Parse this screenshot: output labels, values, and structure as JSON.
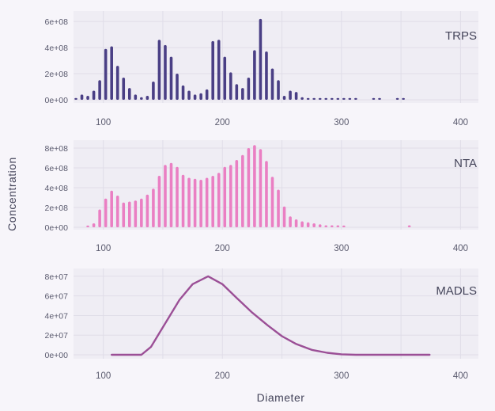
{
  "chart_data": {
    "type": "bar",
    "xlabel": "Diameter",
    "ylabel": "Concentration",
    "xlim": [
      75,
      415
    ],
    "x_ticks": [
      "100",
      "200",
      "300",
      "400"
    ],
    "grid": true,
    "panels": [
      {
        "label": "TRPS",
        "type": "bar",
        "color": "#4a3f85",
        "ylim": [
          0,
          680000000
        ],
        "y_ticks": [
          "0e+00",
          "2e+08",
          "4e+08",
          "6e+08"
        ],
        "y_tick_values": [
          0,
          200000000,
          400000000,
          600000000
        ],
        "x": [
          77,
          82,
          87,
          92,
          97,
          102,
          107,
          112,
          117,
          122,
          127,
          132,
          137,
          142,
          147,
          152,
          157,
          162,
          167,
          172,
          177,
          182,
          187,
          192,
          197,
          202,
          207,
          212,
          217,
          222,
          227,
          232,
          237,
          242,
          247,
          252,
          257,
          262,
          267,
          272,
          277,
          282,
          287,
          292,
          297,
          302,
          307,
          312,
          327,
          332,
          347,
          352
        ],
        "values": [
          10000000,
          40000000,
          30000000,
          70000000,
          150000000,
          390000000,
          410000000,
          260000000,
          170000000,
          90000000,
          40000000,
          20000000,
          30000000,
          140000000,
          460000000,
          420000000,
          330000000,
          200000000,
          110000000,
          70000000,
          40000000,
          50000000,
          80000000,
          450000000,
          460000000,
          330000000,
          210000000,
          120000000,
          90000000,
          170000000,
          380000000,
          620000000,
          370000000,
          240000000,
          150000000,
          30000000,
          70000000,
          60000000,
          20000000,
          10000000,
          10000000,
          10000000,
          10000000,
          10000000,
          10000000,
          10000000,
          10000000,
          10000000,
          10000000,
          10000000,
          10000000,
          10000000
        ]
      },
      {
        "label": "NTA",
        "type": "bar",
        "color": "#ea7fc3",
        "ylim": [
          0,
          880000000
        ],
        "y_ticks": [
          "0e+00",
          "2e+08",
          "4e+08",
          "6e+08",
          "8e+08"
        ],
        "y_tick_values": [
          0,
          200000000,
          400000000,
          600000000,
          800000000
        ],
        "x": [
          87,
          92,
          97,
          102,
          107,
          112,
          117,
          122,
          127,
          132,
          137,
          142,
          147,
          152,
          157,
          162,
          167,
          172,
          177,
          182,
          187,
          192,
          197,
          202,
          207,
          212,
          217,
          222,
          227,
          232,
          237,
          242,
          247,
          252,
          257,
          262,
          267,
          272,
          277,
          282,
          287,
          292,
          297,
          302,
          357
        ],
        "values": [
          10000000,
          40000000,
          180000000,
          290000000,
          370000000,
          320000000,
          250000000,
          260000000,
          270000000,
          290000000,
          330000000,
          390000000,
          520000000,
          630000000,
          650000000,
          610000000,
          530000000,
          500000000,
          490000000,
          480000000,
          500000000,
          520000000,
          550000000,
          610000000,
          630000000,
          680000000,
          730000000,
          800000000,
          830000000,
          790000000,
          670000000,
          510000000,
          380000000,
          210000000,
          110000000,
          80000000,
          60000000,
          50000000,
          40000000,
          30000000,
          20000000,
          20000000,
          20000000,
          10000000,
          20000000
        ]
      },
      {
        "label": "MADLS",
        "type": "line",
        "color": "#9b4f96",
        "ylim": [
          0,
          88000000
        ],
        "y_ticks": [
          "0e+00",
          "2e+07",
          "4e+07",
          "6e+07",
          "8e+07"
        ],
        "y_tick_values": [
          0,
          20000000,
          40000000,
          60000000,
          80000000
        ],
        "x": [
          107,
          132,
          140,
          147,
          155,
          164,
          175,
          188,
          200,
          212,
          225,
          238,
          250,
          262,
          275,
          288,
          300,
          312,
          325,
          338,
          350,
          362,
          374
        ],
        "values": [
          0,
          0,
          8000000,
          22000000,
          38000000,
          56000000,
          72000000,
          80000000,
          72000000,
          58000000,
          43000000,
          30000000,
          19000000,
          11000000,
          5000000,
          2000000,
          500000,
          0,
          0,
          0,
          0,
          0,
          0
        ]
      }
    ]
  }
}
